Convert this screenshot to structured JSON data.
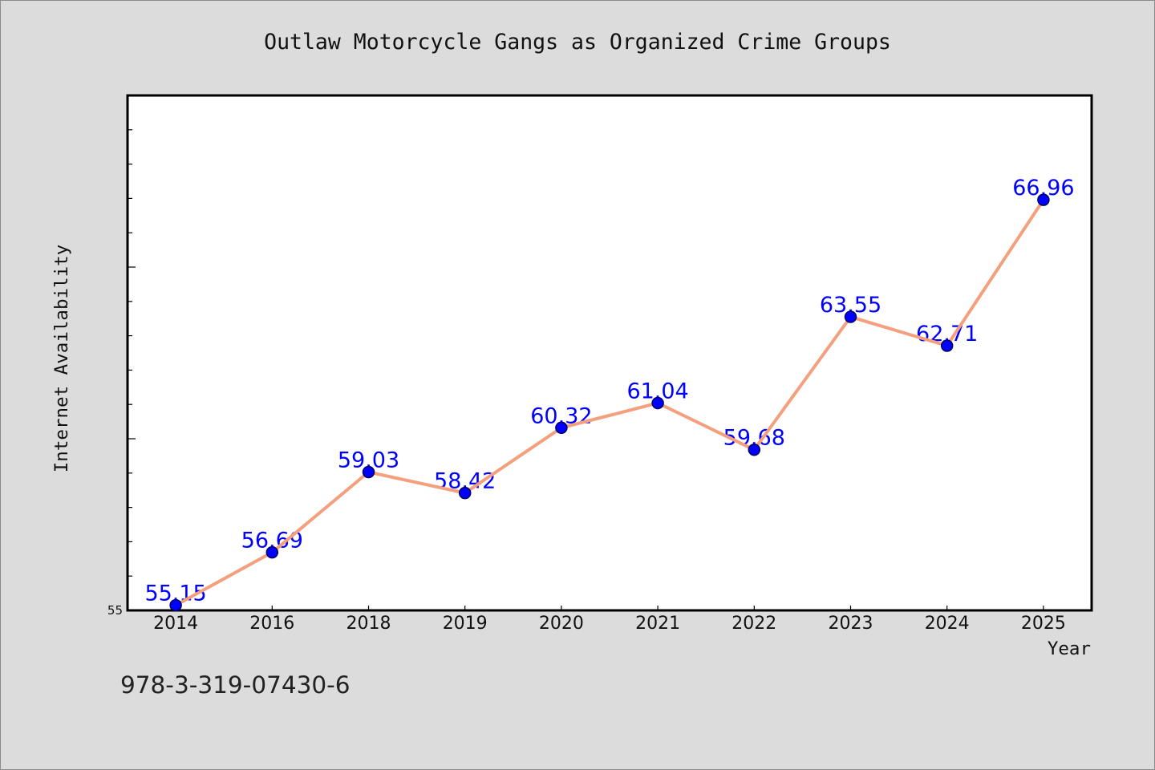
{
  "figure": {
    "footer_text": "978-3-319-07430-6",
    "background_color": "#dcdcdc",
    "plot_background_color": "#ffffff",
    "frame_color": "#000000"
  },
  "chart_data": {
    "type": "line",
    "title": "Outlaw Motorcycle Gangs as Organized Crime Groups",
    "xlabel": "Year",
    "ylabel": "Internet Availability",
    "categories": [
      "2014",
      "2016",
      "2018",
      "2019",
      "2020",
      "2021",
      "2022",
      "2023",
      "2024",
      "2025"
    ],
    "series": [
      {
        "values": [
          55.15,
          56.69,
          59.03,
          58.42,
          60.32,
          61.04,
          59.68,
          63.55,
          62.71,
          66.96
        ],
        "line_color": "#f4a07e",
        "marker_color": "#0000ff",
        "marker_edge_color": "#00005a",
        "label_color": "#0000ff",
        "data_labels": true
      }
    ],
    "ylim": [
      55,
      70
    ],
    "y_tick_labels": [
      "55"
    ],
    "y_minor_tick_step": 1,
    "y_major_tick_step": 5,
    "grid": false,
    "legend": "none"
  }
}
